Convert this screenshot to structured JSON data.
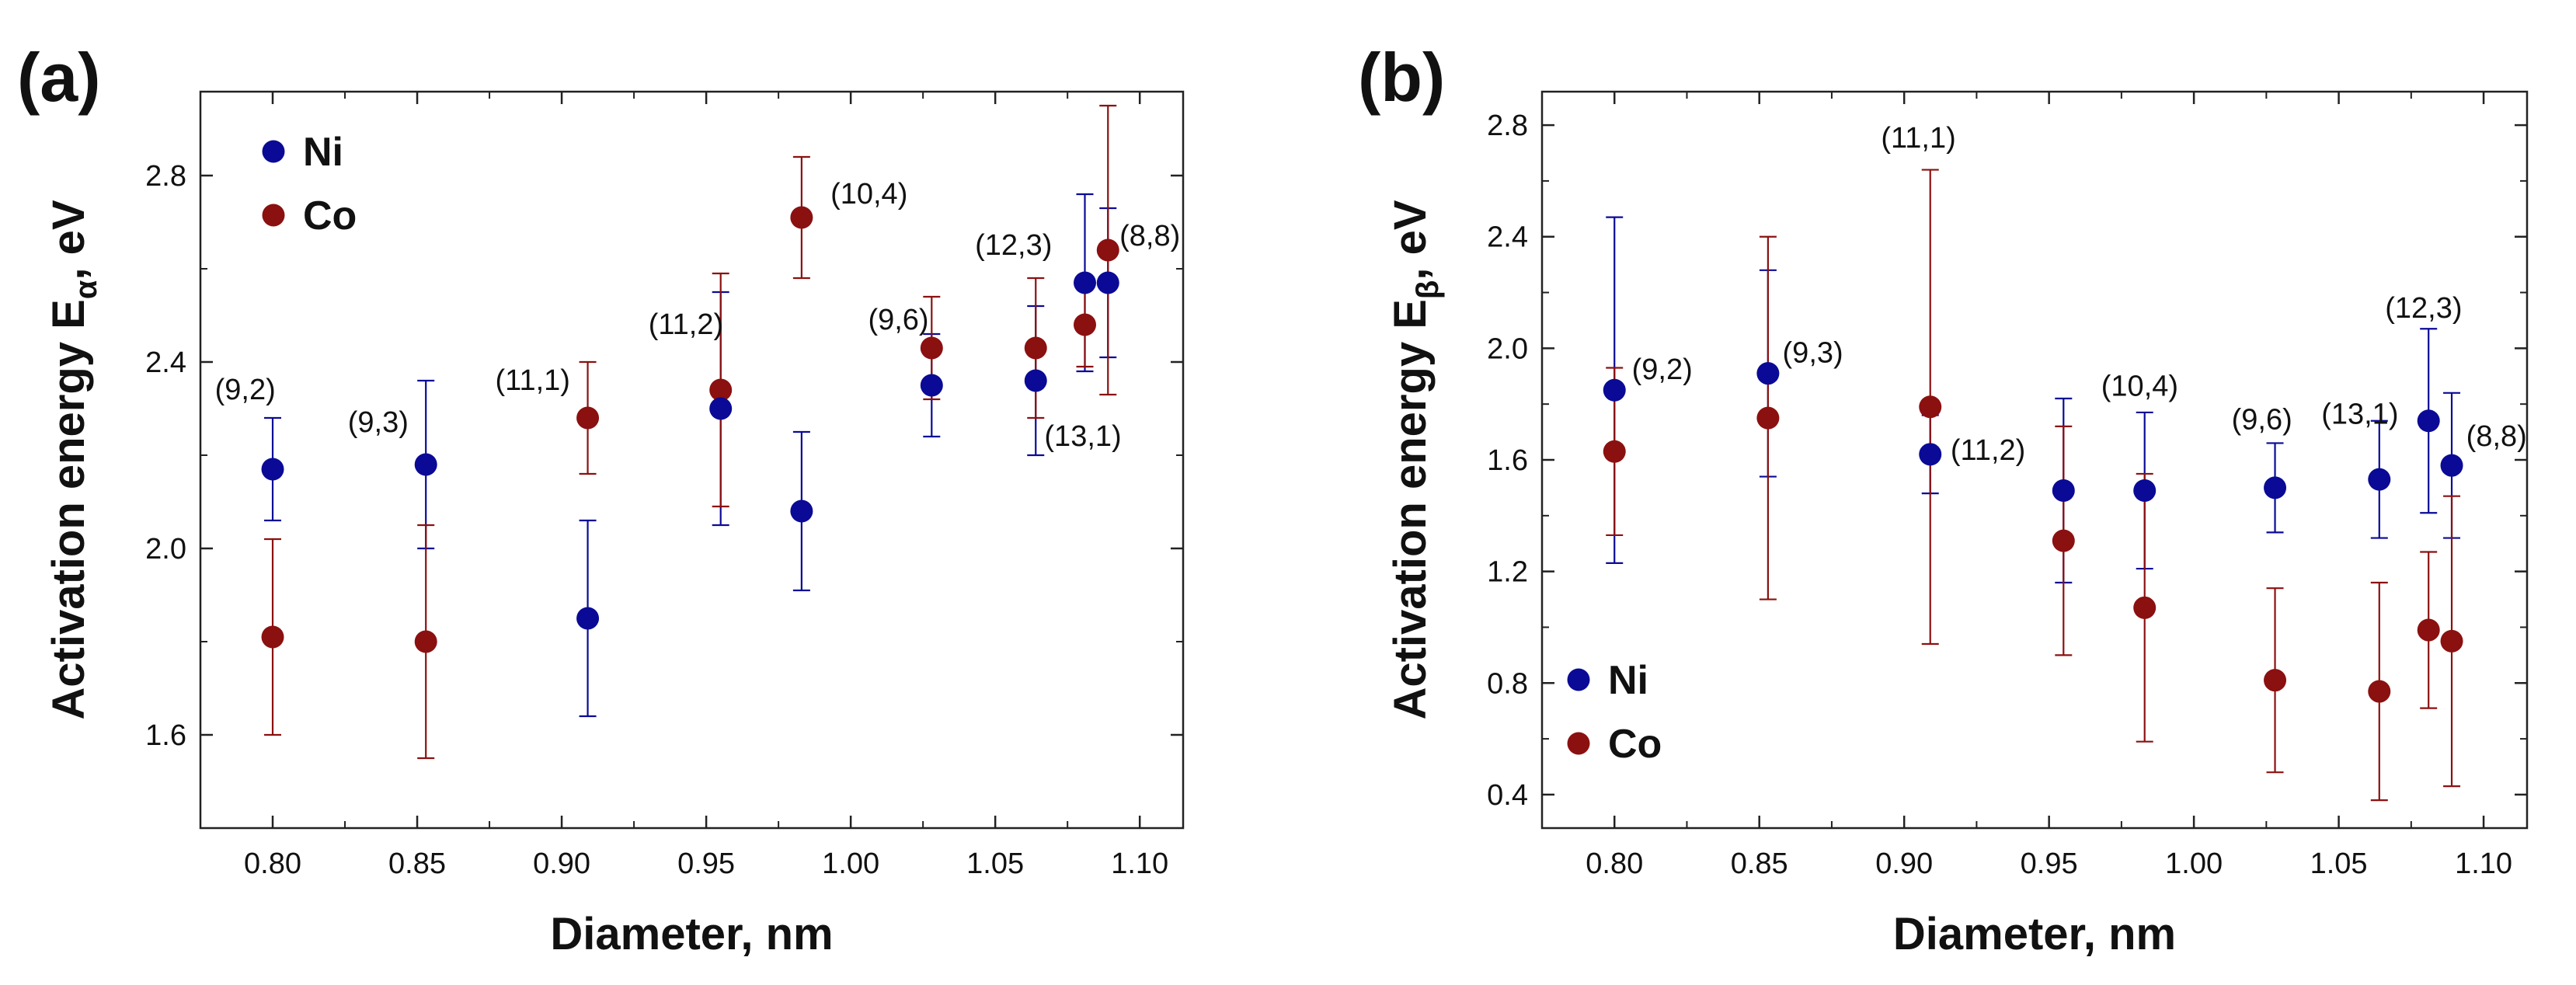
{
  "chart_data": [
    {
      "type": "scatter",
      "panel_label": "(a)",
      "xlabel": "Diameter, nm",
      "ylabel_main": "Activation energy E",
      "ylabel_sub": "α",
      "ylabel_tail": ", eV",
      "xlim": [
        0.775,
        1.115
      ],
      "ylim": [
        1.4,
        2.98
      ],
      "x_ticks": [
        0.8,
        0.85,
        0.9,
        0.95,
        1.0,
        1.05,
        1.1
      ],
      "x_tick_labels": [
        "0.80",
        "0.85",
        "0.90",
        "0.95",
        "1.00",
        "1.05",
        "1.10"
      ],
      "y_ticks": [
        1.6,
        2.0,
        2.4,
        2.8
      ],
      "y_tick_labels": [
        "1.6",
        "2.0",
        "2.4",
        "2.8"
      ],
      "grid": false,
      "legend_position": "top-left",
      "series": [
        {
          "name": "Ni",
          "color": "#0a0a96",
          "x": [
            0.8,
            0.853,
            0.909,
            0.955,
            0.983,
            1.028,
            1.064,
            1.081,
            1.089
          ],
          "y": [
            2.17,
            2.18,
            1.85,
            2.3,
            2.08,
            2.35,
            2.36,
            2.57,
            2.57
          ],
          "y_err_low": [
            2.06,
            2.0,
            1.64,
            2.05,
            1.91,
            2.24,
            2.2,
            2.38,
            2.41
          ],
          "y_err_high": [
            2.28,
            2.36,
            2.06,
            2.55,
            2.25,
            2.46,
            2.52,
            2.76,
            2.73
          ]
        },
        {
          "name": "Co",
          "color": "#8b1010",
          "x": [
            0.8,
            0.853,
            0.909,
            0.955,
            0.983,
            1.028,
            1.064,
            1.081,
            1.089
          ],
          "y": [
            1.81,
            1.8,
            2.28,
            2.34,
            2.71,
            2.43,
            2.43,
            2.48,
            2.64
          ],
          "y_err_low": [
            1.6,
            1.55,
            2.16,
            2.09,
            2.58,
            2.32,
            2.28,
            2.39,
            2.33
          ],
          "y_err_high": [
            2.02,
            2.05,
            2.4,
            2.59,
            2.84,
            2.54,
            2.58,
            2.57,
            2.95
          ]
        }
      ],
      "annotations": [
        {
          "text": "(9,2)",
          "x": 0.78,
          "y": 2.32
        },
        {
          "text": "(9,3)",
          "x": 0.826,
          "y": 2.25
        },
        {
          "text": "(11,1)",
          "x": 0.877,
          "y": 2.34
        },
        {
          "text": "(11,2)",
          "x": 0.93,
          "y": 2.46
        },
        {
          "text": "(10,4)",
          "x": 0.993,
          "y": 2.74
        },
        {
          "text": "(9,6)",
          "x": 1.006,
          "y": 2.47
        },
        {
          "text": "(12,3)",
          "x": 1.043,
          "y": 2.63
        },
        {
          "text": "(13,1)",
          "x": 1.067,
          "y": 2.22
        },
        {
          "text": "(8,8)",
          "x": 1.093,
          "y": 2.65
        }
      ]
    },
    {
      "type": "scatter",
      "panel_label": "(b)",
      "xlabel": "Diameter, nm",
      "ylabel_main": "Activation energy E",
      "ylabel_sub": "β",
      "ylabel_tail": ", eV",
      "xlim": [
        0.775,
        1.115
      ],
      "ylim": [
        0.28,
        2.92
      ],
      "x_ticks": [
        0.8,
        0.85,
        0.9,
        0.95,
        1.0,
        1.05,
        1.1
      ],
      "x_tick_labels": [
        "0.80",
        "0.85",
        "0.90",
        "0.95",
        "1.00",
        "1.05",
        "1.10"
      ],
      "y_ticks": [
        0.4,
        0.8,
        1.2,
        1.6,
        2.0,
        2.4,
        2.8
      ],
      "y_tick_labels": [
        "0.4",
        "0.8",
        "1.2",
        "1.6",
        "2.0",
        "2.4",
        "2.8"
      ],
      "grid": false,
      "legend_position": "bottom-left",
      "series": [
        {
          "name": "Ni",
          "color": "#0a0a96",
          "x": [
            0.8,
            0.853,
            0.909,
            0.955,
            0.983,
            1.028,
            1.064,
            1.081,
            1.089
          ],
          "y": [
            1.85,
            1.91,
            1.62,
            1.49,
            1.49,
            1.5,
            1.53,
            1.74,
            1.58
          ],
          "y_err_low": [
            1.23,
            1.54,
            1.48,
            1.16,
            1.21,
            1.34,
            1.32,
            1.41,
            1.32
          ],
          "y_err_high": [
            2.47,
            2.28,
            1.76,
            1.82,
            1.77,
            1.66,
            1.74,
            2.07,
            1.84
          ]
        },
        {
          "name": "Co",
          "color": "#8b1010",
          "x": [
            0.8,
            0.853,
            0.909,
            0.955,
            0.983,
            1.028,
            1.064,
            1.081,
            1.089
          ],
          "y": [
            1.63,
            1.75,
            1.79,
            1.31,
            1.07,
            0.81,
            0.77,
            0.99,
            0.95
          ],
          "y_err_low": [
            1.33,
            1.1,
            0.94,
            0.9,
            0.59,
            0.48,
            0.38,
            0.71,
            0.43
          ],
          "y_err_high": [
            1.93,
            2.4,
            2.64,
            1.72,
            1.55,
            1.14,
            1.16,
            1.27,
            1.47
          ]
        }
      ],
      "annotations": [
        {
          "text": "(9,2)",
          "x": 0.806,
          "y": 1.89
        },
        {
          "text": "(9,3)",
          "x": 0.858,
          "y": 1.95
        },
        {
          "text": "(11,1)",
          "x": 0.892,
          "y": 2.72
        },
        {
          "text": "(11,2)",
          "x": 0.916,
          "y": 1.6
        },
        {
          "text": "(10,4)",
          "x": 0.968,
          "y": 1.83
        },
        {
          "text": "(9,6)",
          "x": 1.013,
          "y": 1.71
        },
        {
          "text": "(13,1)",
          "x": 1.044,
          "y": 1.73
        },
        {
          "text": "(12,3)",
          "x": 1.066,
          "y": 2.11
        },
        {
          "text": "(8,8)",
          "x": 1.094,
          "y": 1.65
        }
      ]
    }
  ]
}
